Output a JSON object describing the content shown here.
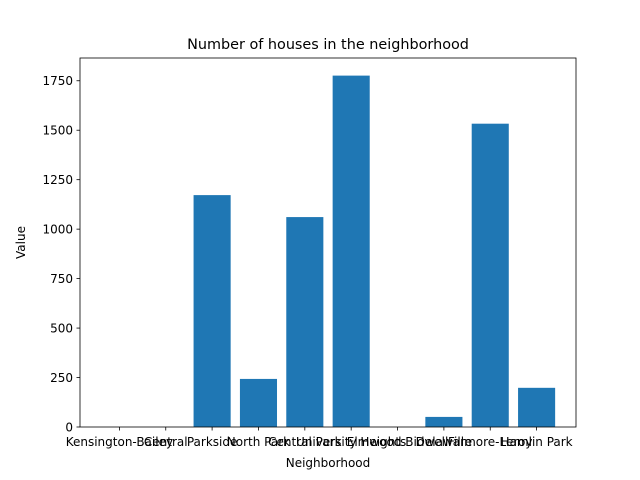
{
  "chart_data": {
    "type": "bar",
    "title": "Number of houses in the neighborhood",
    "xlabel": "Neighborhood",
    "ylabel": "Value",
    "categories": [
      "Kensington-Bailey",
      "Central",
      "Parkside",
      "North Park",
      "Central Park",
      "University Heights",
      "Elmwood Bidwell",
      "Delaware",
      "Fillmore-Leroy",
      "Hamlin Park"
    ],
    "values": [
      0,
      0,
      1172,
      243,
      1061,
      1776,
      0,
      51,
      1533,
      198
    ],
    "ylim": [
      0,
      1865
    ],
    "yticks": [
      0,
      250,
      500,
      750,
      1000,
      1250,
      1500,
      1750
    ],
    "grid": false,
    "legend": "none",
    "bar_color": "#1f77b4"
  }
}
